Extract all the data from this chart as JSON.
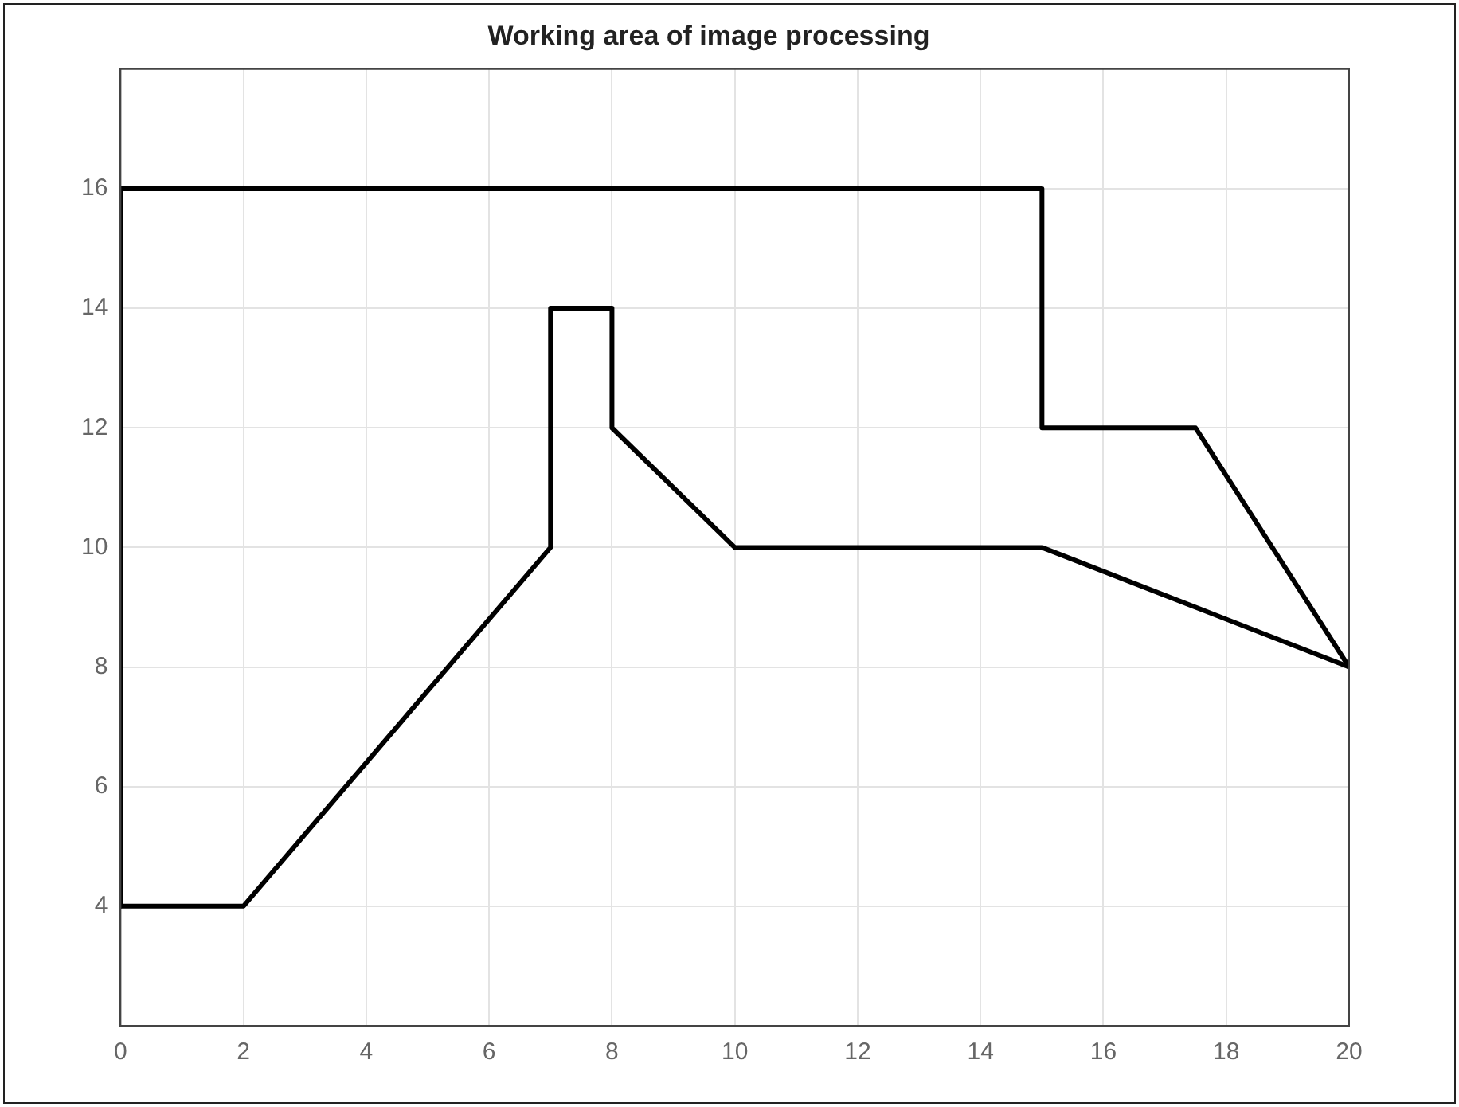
{
  "chart_data": {
    "type": "line",
    "title": "Working area of image processing",
    "series": [
      {
        "color": "#000000",
        "x": [
          0,
          2,
          7,
          7,
          8,
          8,
          10,
          15,
          20
        ],
        "values": [
          4,
          4,
          10,
          14,
          14,
          12,
          10,
          10,
          8
        ]
      },
      {
        "color": "#000000",
        "x": [
          0,
          0,
          15,
          15,
          17.5,
          20
        ],
        "values": [
          4,
          16,
          16,
          12,
          12,
          8
        ]
      }
    ],
    "xlim": [
      0,
      20
    ],
    "xticks": [
      0,
      2,
      4,
      6,
      8,
      10,
      12,
      14,
      16,
      18,
      20
    ],
    "ylim": [
      2,
      18
    ],
    "yticks": [
      4,
      6,
      8,
      10,
      12,
      14,
      16
    ],
    "grid": true,
    "legend": false,
    "marker": "none",
    "line_style": "solid"
  }
}
